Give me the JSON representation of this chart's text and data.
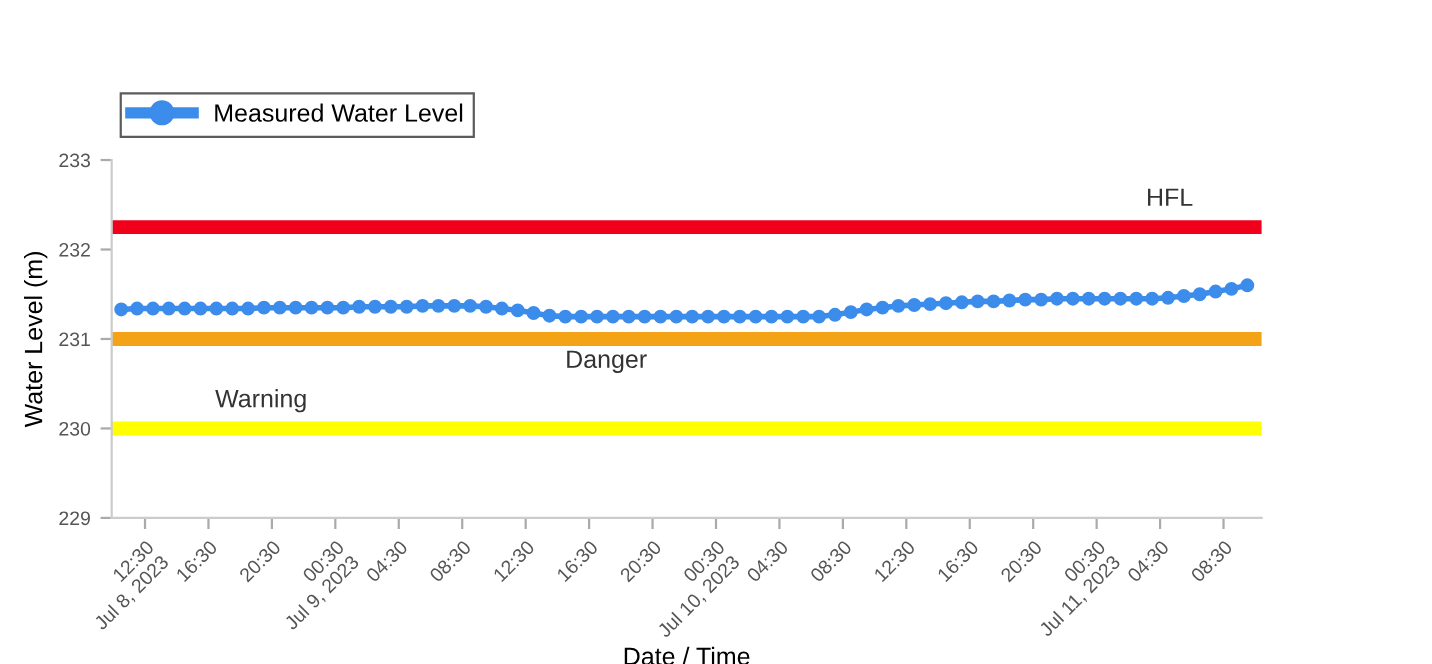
{
  "chart_data": {
    "type": "line",
    "xlabel": "Date / Time",
    "ylabel": "Water Level (m)",
    "x": [
      "2023-07-08T11:00",
      "2023-07-08T12:00",
      "2023-07-08T13:00",
      "2023-07-08T14:00",
      "2023-07-08T15:00",
      "2023-07-08T16:00",
      "2023-07-08T17:00",
      "2023-07-08T18:00",
      "2023-07-08T19:00",
      "2023-07-08T20:00",
      "2023-07-08T21:00",
      "2023-07-08T22:00",
      "2023-07-08T23:00",
      "2023-07-09T00:00",
      "2023-07-09T01:00",
      "2023-07-09T02:00",
      "2023-07-09T03:00",
      "2023-07-09T04:00",
      "2023-07-09T05:00",
      "2023-07-09T06:00",
      "2023-07-09T07:00",
      "2023-07-09T08:00",
      "2023-07-09T09:00",
      "2023-07-09T10:00",
      "2023-07-09T11:00",
      "2023-07-09T12:00",
      "2023-07-09T13:00",
      "2023-07-09T14:00",
      "2023-07-09T15:00",
      "2023-07-09T16:00",
      "2023-07-09T17:00",
      "2023-07-09T18:00",
      "2023-07-09T19:00",
      "2023-07-09T20:00",
      "2023-07-09T21:00",
      "2023-07-09T22:00",
      "2023-07-09T23:00",
      "2023-07-10T00:00",
      "2023-07-10T01:00",
      "2023-07-10T02:00",
      "2023-07-10T03:00",
      "2023-07-10T04:00",
      "2023-07-10T05:00",
      "2023-07-10T06:00",
      "2023-07-10T07:00",
      "2023-07-10T08:00",
      "2023-07-10T09:00",
      "2023-07-10T10:00",
      "2023-07-10T11:00",
      "2023-07-10T12:00",
      "2023-07-10T13:00",
      "2023-07-10T14:00",
      "2023-07-10T15:00",
      "2023-07-10T16:00",
      "2023-07-10T17:00",
      "2023-07-10T18:00",
      "2023-07-10T19:00",
      "2023-07-10T20:00",
      "2023-07-10T21:00",
      "2023-07-10T22:00",
      "2023-07-10T23:00",
      "2023-07-11T00:00",
      "2023-07-11T01:00",
      "2023-07-11T02:00",
      "2023-07-11T03:00",
      "2023-07-11T04:00",
      "2023-07-11T05:00",
      "2023-07-11T06:00",
      "2023-07-11T07:00",
      "2023-07-11T08:00",
      "2023-07-11T09:00",
      "2023-07-11T10:00"
    ],
    "series": [
      {
        "name": "Measured Water Level",
        "color": "#3b8ceb",
        "values": [
          231.33,
          231.34,
          231.34,
          231.34,
          231.34,
          231.34,
          231.34,
          231.34,
          231.34,
          231.35,
          231.35,
          231.35,
          231.35,
          231.35,
          231.35,
          231.36,
          231.36,
          231.36,
          231.36,
          231.37,
          231.37,
          231.37,
          231.37,
          231.36,
          231.34,
          231.32,
          231.29,
          231.26,
          231.25,
          231.25,
          231.25,
          231.25,
          231.25,
          231.25,
          231.25,
          231.25,
          231.25,
          231.25,
          231.25,
          231.25,
          231.25,
          231.25,
          231.25,
          231.25,
          231.25,
          231.27,
          231.3,
          231.33,
          231.35,
          231.37,
          231.38,
          231.39,
          231.4,
          231.41,
          231.42,
          231.42,
          231.43,
          231.44,
          231.44,
          231.45,
          231.45,
          231.45,
          231.45,
          231.45,
          231.45,
          231.45,
          231.46,
          231.48,
          231.5,
          231.53,
          231.56,
          231.6
        ]
      }
    ],
    "xlim": [
      "2023-07-08T10:24",
      "2023-07-11T10:54"
    ],
    "xticks": [
      {
        "value": "2023-07-08T12:30",
        "label": "12:30\nJul 8, 2023"
      },
      {
        "value": "2023-07-08T16:30",
        "label": "16:30"
      },
      {
        "value": "2023-07-08T20:30",
        "label": "20:30"
      },
      {
        "value": "2023-07-09T00:30",
        "label": "00:30\nJul 9, 2023"
      },
      {
        "value": "2023-07-09T04:30",
        "label": "04:30"
      },
      {
        "value": "2023-07-09T08:30",
        "label": "08:30"
      },
      {
        "value": "2023-07-09T12:30",
        "label": "12:30"
      },
      {
        "value": "2023-07-09T16:30",
        "label": "16:30"
      },
      {
        "value": "2023-07-09T20:30",
        "label": "20:30"
      },
      {
        "value": "2023-07-10T00:30",
        "label": "00:30\nJul 10, 2023"
      },
      {
        "value": "2023-07-10T04:30",
        "label": "04:30"
      },
      {
        "value": "2023-07-10T08:30",
        "label": "08:30"
      },
      {
        "value": "2023-07-10T12:30",
        "label": "12:30"
      },
      {
        "value": "2023-07-10T16:30",
        "label": "16:30"
      },
      {
        "value": "2023-07-10T20:30",
        "label": "20:30"
      },
      {
        "value": "2023-07-11T00:30",
        "label": "00:30\nJul 11, 2023"
      },
      {
        "value": "2023-07-11T04:30",
        "label": "04:30"
      },
      {
        "value": "2023-07-11T08:30",
        "label": "08:30"
      }
    ],
    "ylim": [
      229,
      233
    ],
    "yticks": [
      229,
      230,
      231,
      232,
      233
    ],
    "ref_lines": [
      {
        "axis": "y",
        "value": 232.25,
        "label": "HFL",
        "color": "#f0001a"
      },
      {
        "axis": "y",
        "value": 231,
        "label": "Danger",
        "color": "#f5a316"
      },
      {
        "axis": "y",
        "value": 230,
        "label": "Warning",
        "color": "#ffff00"
      }
    ],
    "grid": false,
    "legend": "top left",
    "marker": "circle",
    "line_style": "solid"
  }
}
